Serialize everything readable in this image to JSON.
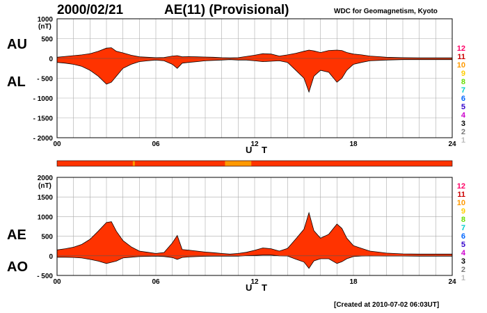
{
  "header": {
    "date": "2000/02/21",
    "title": "AE(11) (Provisional)",
    "source": "WDC for Geomagnetism, Kyoto",
    "created": "[Created at 2010-07-02 06:03UT]"
  },
  "colors": {
    "fill": "#ff3300",
    "partial_fill": "#ff9900",
    "grid": "#aaaaaa"
  },
  "legend_levels": [
    {
      "label": "12",
      "color": "#ff0066"
    },
    {
      "label": "11",
      "color": "#cc0000"
    },
    {
      "label": "10",
      "color": "#ff9900"
    },
    {
      "label": "9",
      "color": "#ffcc00"
    },
    {
      "label": "8",
      "color": "#66dd00"
    },
    {
      "label": "7",
      "color": "#00cccc"
    },
    {
      "label": "6",
      "color": "#0066ff"
    },
    {
      "label": "5",
      "color": "#3300cc"
    },
    {
      "label": "4",
      "color": "#cc00cc"
    },
    {
      "label": "3",
      "color": "#000000"
    },
    {
      "label": "2",
      "color": "#777777"
    },
    {
      "label": "1",
      "color": "#bbbbbb"
    }
  ],
  "chart_data": [
    {
      "type": "area",
      "id": "au_al",
      "panel_labels": [
        "AU",
        "AL"
      ],
      "unit": "(nT)",
      "xlabel": "U T",
      "xlim": [
        0,
        24
      ],
      "xticks": [
        "00",
        "06",
        "12",
        "18",
        "24"
      ],
      "ylim": [
        -2000,
        1000
      ],
      "yticks": [
        "1000",
        "500",
        "0",
        "- 500",
        "- 1000",
        "- 1500",
        "- 2000"
      ],
      "grid": true,
      "series": [
        {
          "name": "AU",
          "x": [
            0,
            0.5,
            1,
            1.5,
            2,
            2.5,
            3,
            3.3,
            3.6,
            4,
            4.5,
            5,
            5.5,
            6,
            6.5,
            7,
            7.3,
            7.6,
            8,
            8.5,
            9,
            9.5,
            10,
            10.5,
            11,
            11.5,
            12,
            12.5,
            13,
            13.5,
            14,
            14.5,
            15,
            15.3,
            15.6,
            16,
            16.5,
            17,
            17.3,
            17.6,
            18,
            18.5,
            19,
            19.5,
            20,
            21,
            22,
            23,
            24
          ],
          "values": [
            30,
            50,
            70,
            90,
            120,
            180,
            260,
            270,
            180,
            140,
            80,
            40,
            30,
            20,
            25,
            60,
            70,
            40,
            45,
            40,
            35,
            30,
            20,
            15,
            20,
            50,
            80,
            120,
            110,
            60,
            90,
            130,
            180,
            210,
            190,
            150,
            200,
            210,
            200,
            150,
            110,
            90,
            60,
            45,
            30,
            20,
            15,
            15,
            15
          ]
        },
        {
          "name": "AL",
          "x": [
            0,
            0.5,
            1,
            1.5,
            2,
            2.5,
            3,
            3.3,
            3.6,
            4,
            4.5,
            5,
            5.5,
            6,
            6.5,
            7,
            7.3,
            7.6,
            8,
            8.5,
            9,
            9.5,
            10,
            10.5,
            11,
            11.5,
            12,
            12.5,
            13,
            13.5,
            14,
            14.5,
            15,
            15.3,
            15.6,
            16,
            16.5,
            17,
            17.3,
            17.6,
            18,
            18.5,
            19,
            19.5,
            20,
            21,
            22,
            23,
            24
          ],
          "values": [
            -100,
            -120,
            -150,
            -200,
            -300,
            -450,
            -650,
            -600,
            -450,
            -250,
            -150,
            -80,
            -60,
            -40,
            -60,
            -150,
            -250,
            -120,
            -100,
            -80,
            -60,
            -50,
            -40,
            -30,
            -40,
            -40,
            -60,
            -80,
            -70,
            -60,
            -100,
            -300,
            -500,
            -850,
            -450,
            -300,
            -350,
            -600,
            -500,
            -300,
            -150,
            -100,
            -60,
            -50,
            -40,
            -30,
            -30,
            -30,
            -30
          ]
        }
      ]
    },
    {
      "type": "area",
      "id": "ae_ao",
      "panel_labels": [
        "AE",
        "AO"
      ],
      "unit": "(nT)",
      "xlabel": "U T",
      "xlim": [
        0,
        24
      ],
      "xticks": [
        "00",
        "06",
        "12",
        "18",
        "24"
      ],
      "ylim": [
        -500,
        2000
      ],
      "yticks": [
        "2000",
        "1500",
        "1000",
        "500",
        "0",
        "- 500"
      ],
      "grid": true,
      "series": [
        {
          "name": "AE",
          "x": [
            0,
            0.5,
            1,
            1.5,
            2,
            2.5,
            3,
            3.3,
            3.6,
            4,
            4.5,
            5,
            5.5,
            6,
            6.5,
            7,
            7.3,
            7.6,
            8,
            8.5,
            9,
            9.5,
            10,
            10.5,
            11,
            11.5,
            12,
            12.5,
            13,
            13.5,
            14,
            14.5,
            15,
            15.3,
            15.6,
            16,
            16.5,
            17,
            17.3,
            17.6,
            18,
            18.5,
            19,
            19.5,
            20,
            21,
            22,
            23,
            24
          ],
          "values": [
            150,
            180,
            220,
            290,
            420,
            630,
            850,
            870,
            630,
            390,
            230,
            120,
            90,
            60,
            85,
            330,
            520,
            160,
            145,
            120,
            95,
            80,
            60,
            45,
            60,
            90,
            140,
            200,
            180,
            120,
            190,
            430,
            680,
            1100,
            640,
            450,
            550,
            810,
            700,
            450,
            260,
            190,
            120,
            95,
            70,
            50,
            45,
            45,
            45
          ]
        },
        {
          "name": "AO",
          "x": [
            0,
            0.5,
            1,
            1.5,
            2,
            2.5,
            3,
            3.3,
            3.6,
            4,
            4.5,
            5,
            5.5,
            6,
            6.5,
            7,
            7.3,
            7.6,
            8,
            8.5,
            9,
            9.5,
            10,
            10.5,
            11,
            11.5,
            12,
            12.5,
            13,
            13.5,
            14,
            14.5,
            15,
            15.3,
            15.6,
            16,
            16.5,
            17,
            17.3,
            17.6,
            18,
            18.5,
            19,
            19.5,
            20,
            21,
            22,
            23,
            24
          ],
          "values": [
            -35,
            -35,
            -40,
            -55,
            -90,
            -135,
            -195,
            -165,
            -135,
            -55,
            -35,
            -20,
            -15,
            -10,
            -18,
            -45,
            -90,
            -40,
            -28,
            -20,
            -13,
            -10,
            -10,
            -8,
            -10,
            5,
            10,
            20,
            20,
            0,
            -5,
            -85,
            -160,
            -320,
            -130,
            -75,
            -75,
            -195,
            -150,
            -75,
            -20,
            -5,
            0,
            -3,
            -5,
            -5,
            -8,
            -8,
            -8
          ]
        }
      ]
    }
  ]
}
